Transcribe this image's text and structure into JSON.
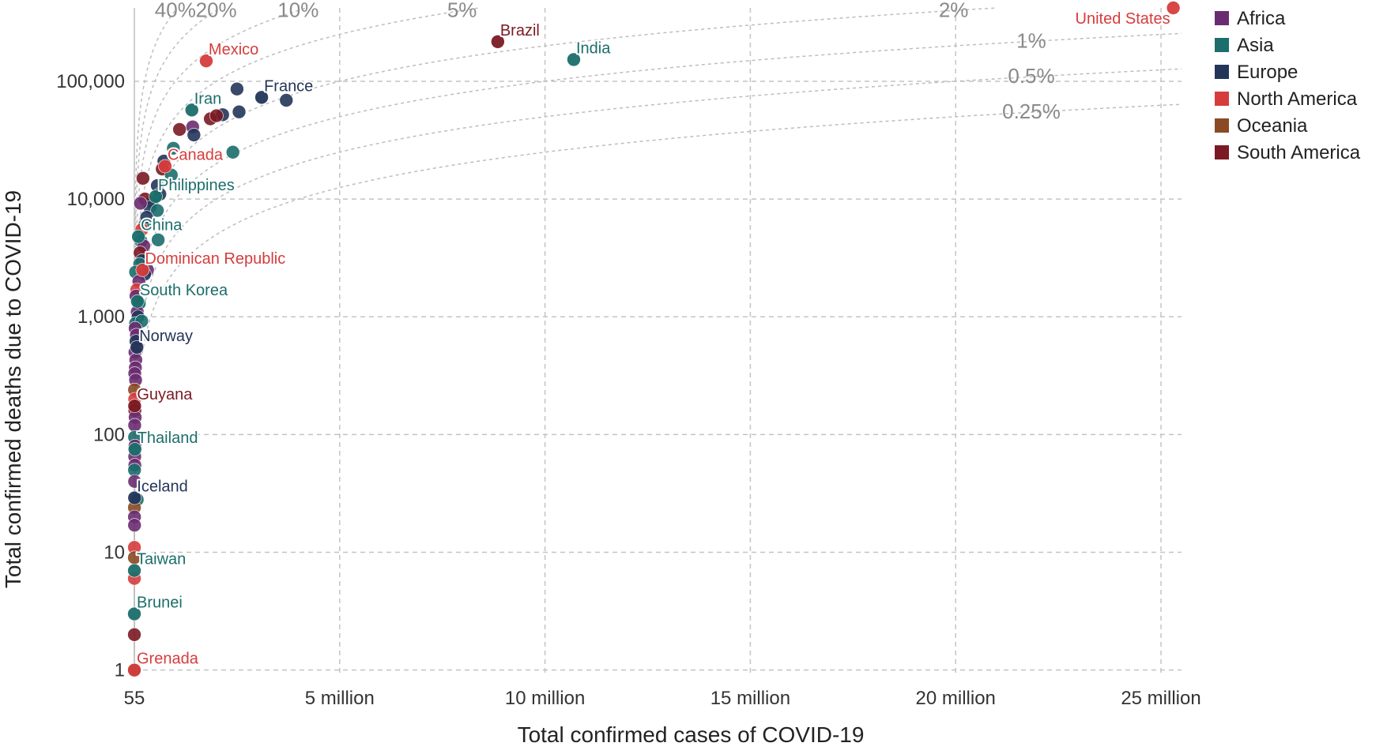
{
  "chart_data": {
    "type": "scatter",
    "title": "",
    "xlabel": "Total confirmed cases of COVID-19",
    "ylabel": "Total confirmed deaths due to COVID-19",
    "x_scale": "linear",
    "y_scale": "log",
    "xlim": [
      55,
      25500000
    ],
    "ylim": [
      0.95,
      420000
    ],
    "x_ticks": [
      {
        "value": 55,
        "label": "55"
      },
      {
        "value": 5000000,
        "label": "5 million"
      },
      {
        "value": 10000000,
        "label": "10 million"
      },
      {
        "value": 15000000,
        "label": "15 million"
      },
      {
        "value": 20000000,
        "label": "20 million"
      },
      {
        "value": 25000000,
        "label": "25 million"
      }
    ],
    "y_ticks": [
      {
        "value": 1,
        "label": "1"
      },
      {
        "value": 10,
        "label": "10"
      },
      {
        "value": 100,
        "label": "100"
      },
      {
        "value": 1000,
        "label": "1,000"
      },
      {
        "value": 10000,
        "label": "10,000"
      },
      {
        "value": 100000,
        "label": "100,000"
      }
    ],
    "grid": true,
    "legend_position": "right",
    "colors": {
      "Africa": "#6a2c70",
      "Asia": "#1b6e6b",
      "Europe": "#24355a",
      "North America": "#d63c3c",
      "Oceania": "#8b4a24",
      "South America": "#7a1a24"
    },
    "legend": [
      "Africa",
      "Asia",
      "Europe",
      "North America",
      "Oceania",
      "South America"
    ],
    "cfr_lines": [
      {
        "rate": 0.4,
        "label": "40%"
      },
      {
        "rate": 0.2,
        "label": "20%"
      },
      {
        "rate": 0.1,
        "label": "10%"
      },
      {
        "rate": 0.05,
        "label": "5%"
      },
      {
        "rate": 0.02,
        "label": "2%"
      },
      {
        "rate": 0.01,
        "label": "1%"
      },
      {
        "rate": 0.005,
        "label": "0.5%"
      },
      {
        "rate": 0.0025,
        "label": "0.25%"
      }
    ],
    "labeled_points": [
      {
        "name": "United States",
        "continent": "North America",
        "cases": 25300000,
        "deaths": 420000
      },
      {
        "name": "Brazil",
        "continent": "South America",
        "cases": 8850000,
        "deaths": 217000
      },
      {
        "name": "India",
        "continent": "Asia",
        "cases": 10700000,
        "deaths": 153000
      },
      {
        "name": "Mexico",
        "continent": "North America",
        "cases": 1750000,
        "deaths": 149000
      },
      {
        "name": "France",
        "continent": "Europe",
        "cases": 3100000,
        "deaths": 73000
      },
      {
        "name": "Iran",
        "continent": "Asia",
        "cases": 1400000,
        "deaths": 57000
      },
      {
        "name": "Canada",
        "continent": "North America",
        "cases": 750000,
        "deaths": 19000
      },
      {
        "name": "Philippines",
        "continent": "Asia",
        "cases": 520000,
        "deaths": 10500
      },
      {
        "name": "China",
        "continent": "Asia",
        "cases": 99000,
        "deaths": 4800
      },
      {
        "name": "Dominican Republic",
        "continent": "North America",
        "cases": 200000,
        "deaths": 2500
      },
      {
        "name": "South Korea",
        "continent": "Asia",
        "cases": 75000,
        "deaths": 1350
      },
      {
        "name": "Norway",
        "continent": "Europe",
        "cases": 62000,
        "deaths": 550
      },
      {
        "name": "Guyana",
        "continent": "South America",
        "cases": 7300,
        "deaths": 175
      },
      {
        "name": "Thailand",
        "continent": "Asia",
        "cases": 14000,
        "deaths": 75
      },
      {
        "name": "Iceland",
        "continent": "Europe",
        "cases": 6000,
        "deaths": 29
      },
      {
        "name": "Taiwan",
        "continent": "Asia",
        "cases": 900,
        "deaths": 7
      },
      {
        "name": "Brunei",
        "continent": "Asia",
        "cases": 180,
        "deaths": 3
      },
      {
        "name": "Grenada",
        "continent": "North America",
        "cases": 150,
        "deaths": 1
      }
    ],
    "other_points": [
      {
        "continent": "Europe",
        "cases": 3700000,
        "deaths": 69000
      },
      {
        "continent": "Europe",
        "cases": 2500000,
        "deaths": 86000
      },
      {
        "continent": "Europe",
        "cases": 2550000,
        "deaths": 55000
      },
      {
        "continent": "Europe",
        "cases": 2150000,
        "deaths": 52000
      },
      {
        "continent": "South America",
        "cases": 1850000,
        "deaths": 48000
      },
      {
        "continent": "South America",
        "cases": 2000000,
        "deaths": 51000
      },
      {
        "continent": "Africa",
        "cases": 1420000,
        "deaths": 41000
      },
      {
        "continent": "Europe",
        "cases": 1450000,
        "deaths": 35000
      },
      {
        "continent": "South America",
        "cases": 1100000,
        "deaths": 39000
      },
      {
        "continent": "Asia",
        "cases": 2400000,
        "deaths": 25000
      },
      {
        "continent": "Asia",
        "cases": 950000,
        "deaths": 27000
      },
      {
        "continent": "Europe",
        "cases": 720000,
        "deaths": 21000
      },
      {
        "continent": "South America",
        "cases": 680000,
        "deaths": 18000
      },
      {
        "continent": "Asia",
        "cases": 900000,
        "deaths": 16000
      },
      {
        "continent": "Europe",
        "cases": 560000,
        "deaths": 13000
      },
      {
        "continent": "South America",
        "cases": 210000,
        "deaths": 15000
      },
      {
        "continent": "Europe",
        "cases": 620000,
        "deaths": 11000
      },
      {
        "continent": "Asia",
        "cases": 430000,
        "deaths": 9500
      },
      {
        "continent": "South America",
        "cases": 260000,
        "deaths": 10000
      },
      {
        "continent": "Europe",
        "cases": 380000,
        "deaths": 8500
      },
      {
        "continent": "Asia",
        "cases": 560000,
        "deaths": 8000
      },
      {
        "continent": "Africa",
        "cases": 150000,
        "deaths": 9200
      },
      {
        "continent": "Asia",
        "cases": 250000,
        "deaths": 6000
      },
      {
        "continent": "Europe",
        "cases": 300000,
        "deaths": 7000
      },
      {
        "continent": "North America",
        "cases": 180000,
        "deaths": 5500
      },
      {
        "continent": "Asia",
        "cases": 580000,
        "deaths": 4500
      },
      {
        "continent": "Asia",
        "cases": 160000,
        "deaths": 4400
      },
      {
        "continent": "Africa",
        "cases": 230000,
        "deaths": 4000
      },
      {
        "continent": "South America",
        "cases": 140000,
        "deaths": 3500
      },
      {
        "continent": "Europe",
        "cases": 190000,
        "deaths": 3000
      },
      {
        "continent": "Asia",
        "cases": 130000,
        "deaths": 2800
      },
      {
        "continent": "Africa",
        "cases": 320000,
        "deaths": 2500
      },
      {
        "continent": "Europe",
        "cases": 250000,
        "deaths": 2300
      },
      {
        "continent": "Asia",
        "cases": 30000,
        "deaths": 2400
      },
      {
        "continent": "Africa",
        "cases": 110000,
        "deaths": 2000
      },
      {
        "continent": "North America",
        "cases": 60000,
        "deaths": 1700
      },
      {
        "continent": "Africa",
        "cases": 40000,
        "deaths": 1500
      },
      {
        "continent": "Asia",
        "cases": 120000,
        "deaths": 1300
      },
      {
        "continent": "Africa",
        "cases": 70000,
        "deaths": 1100
      },
      {
        "continent": "Europe",
        "cases": 90000,
        "deaths": 1000
      },
      {
        "continent": "Asia",
        "cases": 30000,
        "deaths": 880
      },
      {
        "continent": "Asia",
        "cases": 180000,
        "deaths": 920
      },
      {
        "continent": "Africa",
        "cases": 20000,
        "deaths": 800
      },
      {
        "continent": "Africa",
        "cases": 50000,
        "deaths": 700
      },
      {
        "continent": "Europe",
        "cases": 40000,
        "deaths": 620
      },
      {
        "continent": "Africa",
        "cases": 15000,
        "deaths": 500
      },
      {
        "continent": "Africa",
        "cases": 35000,
        "deaths": 430
      },
      {
        "continent": "Africa",
        "cases": 25000,
        "deaths": 370
      },
      {
        "continent": "Africa",
        "cases": 10000,
        "deaths": 330
      },
      {
        "continent": "Africa",
        "cases": 30000,
        "deaths": 290
      },
      {
        "continent": "Oceania",
        "cases": 5000,
        "deaths": 240
      },
      {
        "continent": "North America",
        "cases": 9000,
        "deaths": 200
      },
      {
        "continent": "South America",
        "cases": 12000,
        "deaths": 160
      },
      {
        "continent": "Africa",
        "cases": 20000,
        "deaths": 140
      },
      {
        "continent": "Africa",
        "cases": 8000,
        "deaths": 120
      },
      {
        "continent": "Asia",
        "cases": 6000,
        "deaths": 95
      },
      {
        "continent": "Africa",
        "cases": 15000,
        "deaths": 80
      },
      {
        "continent": "Africa",
        "cases": 9000,
        "deaths": 65
      },
      {
        "continent": "Africa",
        "cases": 12000,
        "deaths": 55
      },
      {
        "continent": "Asia",
        "cases": 4000,
        "deaths": 50
      },
      {
        "continent": "Africa",
        "cases": 7000,
        "deaths": 40
      },
      {
        "continent": "Asia",
        "cases": 70000,
        "deaths": 28
      },
      {
        "continent": "Oceania",
        "cases": 2000,
        "deaths": 24
      },
      {
        "continent": "Africa",
        "cases": 3000,
        "deaths": 20
      },
      {
        "continent": "Africa",
        "cases": 4000,
        "deaths": 17
      },
      {
        "continent": "North America",
        "cases": 1500,
        "deaths": 11
      },
      {
        "continent": "Oceania",
        "cases": 1000,
        "deaths": 9
      },
      {
        "continent": "North America",
        "cases": 1200,
        "deaths": 6
      },
      {
        "continent": "South America",
        "cases": 500,
        "deaths": 2
      },
      {
        "continent": "Asia",
        "cases": 100,
        "deaths": 1
      }
    ]
  }
}
